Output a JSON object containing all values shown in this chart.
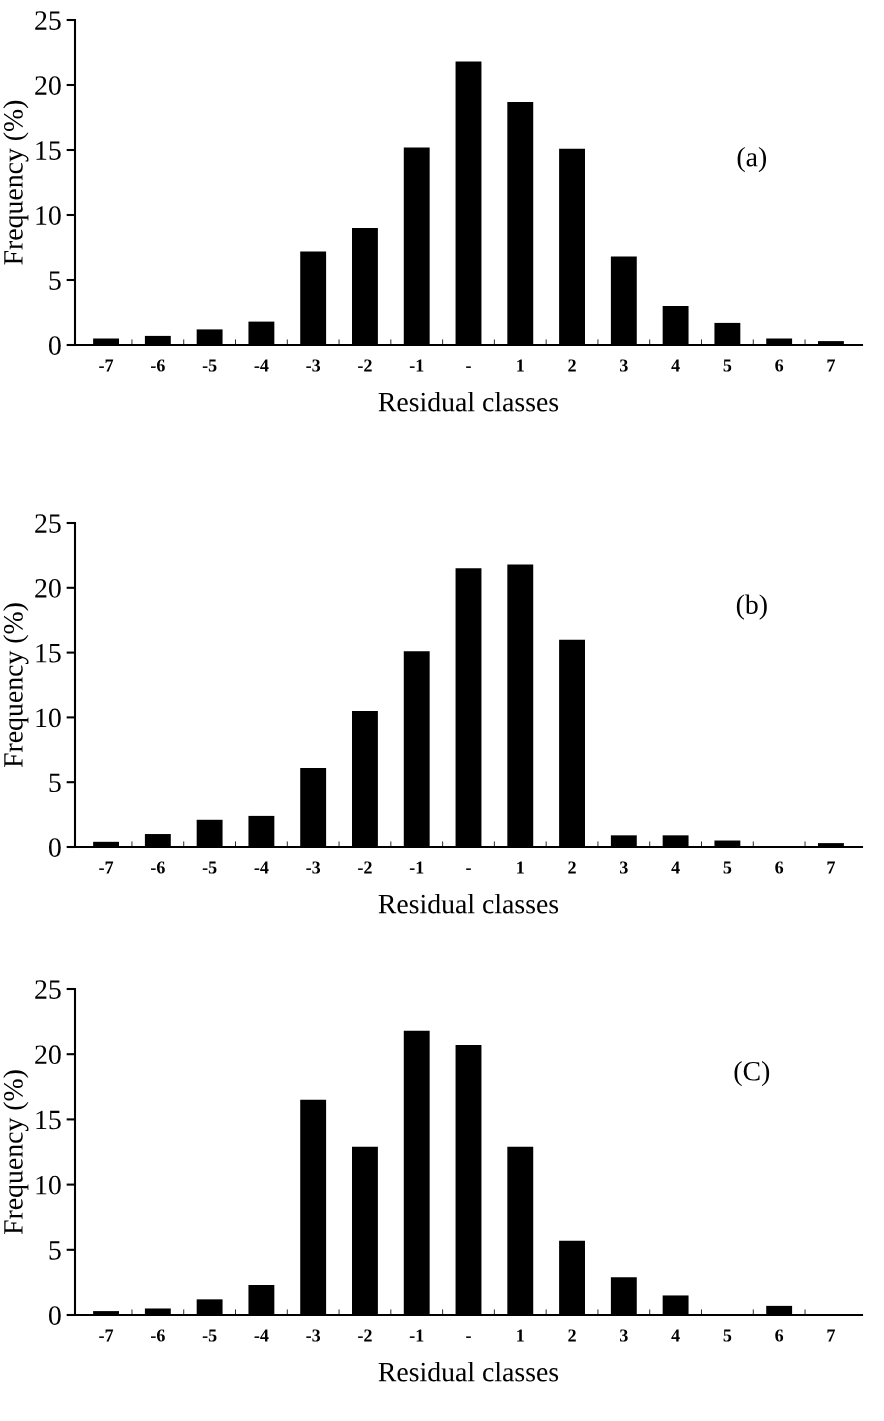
{
  "chart_data": [
    {
      "type": "bar",
      "xlabel": "Residual classes",
      "ylabel": "Frequency (%)",
      "annotations": [
        "(a)"
      ],
      "color": "#000000",
      "ylim": [
        0,
        25
      ],
      "yticks": [
        0,
        5,
        10,
        15,
        20,
        25
      ],
      "categories": [
        "-7",
        "-6",
        "-5",
        "-4",
        "-3",
        "-2",
        "-1",
        "-",
        "1",
        "2",
        "3",
        "4",
        "5",
        "6",
        "7"
      ],
      "values": [
        0.5,
        0.7,
        1.2,
        1.8,
        7.2,
        9.0,
        15.2,
        21.8,
        18.7,
        15.1,
        6.8,
        3.0,
        1.7,
        0.5,
        0.3
      ]
    },
    {
      "type": "bar",
      "xlabel": "Residual classes",
      "ylabel": "Frequency (%)",
      "annotations": [
        "(b)"
      ],
      "color": "#000000",
      "ylim": [
        0,
        25
      ],
      "yticks": [
        0,
        5,
        10,
        15,
        20,
        25
      ],
      "categories": [
        "-7",
        "-6",
        "-5",
        "-4",
        "-3",
        "-2",
        "-1",
        "-",
        "1",
        "2",
        "3",
        "4",
        "5",
        "6",
        "7"
      ],
      "values": [
        0.4,
        1.0,
        2.1,
        2.4,
        6.1,
        10.5,
        15.1,
        21.5,
        21.8,
        16.0,
        0.9,
        0.9,
        0.5,
        0,
        0.3
      ]
    },
    {
      "type": "bar",
      "xlabel": "Residual classes",
      "ylabel": "Frequency (%)",
      "annotations": [
        "(C)"
      ],
      "color": "#000000",
      "ylim": [
        0,
        25
      ],
      "yticks": [
        0,
        5,
        10,
        15,
        20,
        25
      ],
      "categories": [
        "-7",
        "-6",
        "-5",
        "-4",
        "-3",
        "-2",
        "-1",
        "-",
        "1",
        "2",
        "3",
        "4",
        "5",
        "6",
        "7"
      ],
      "values": [
        0.3,
        0.5,
        1.2,
        2.3,
        16.5,
        12.9,
        21.8,
        20.7,
        12.9,
        5.7,
        2.9,
        1.5,
        0,
        0.7,
        0
      ]
    }
  ]
}
